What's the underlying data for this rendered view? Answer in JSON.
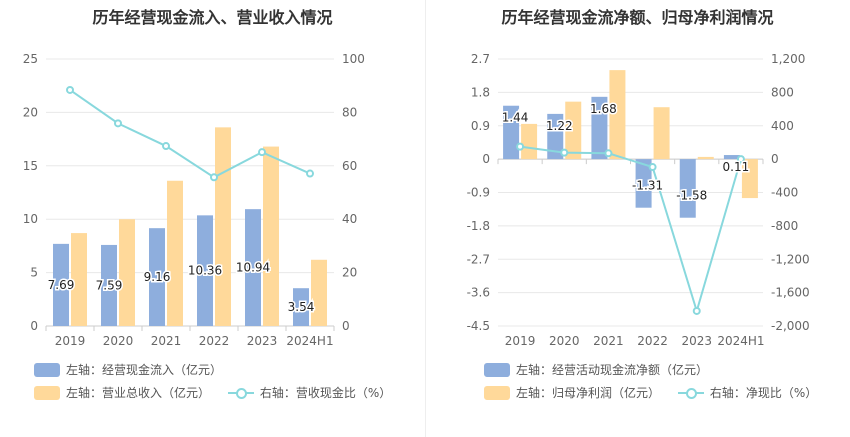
{
  "chart_data": [
    {
      "type": "bar",
      "title": "历年经营现金流入、营业收入情况",
      "categories": [
        "2019",
        "2020",
        "2021",
        "2022",
        "2023",
        "2024H1"
      ],
      "left_axis": {
        "ylim": [
          0,
          25
        ],
        "ticks": [
          "0",
          "5",
          "10",
          "15",
          "20",
          "25"
        ]
      },
      "right_axis": {
        "ylim": [
          0,
          100
        ],
        "ticks": [
          "0",
          "20",
          "40",
          "60",
          "80",
          "100"
        ]
      },
      "series": [
        {
          "name": "左轴：经营现金流入（亿元）",
          "type": "bar",
          "axis": "left",
          "color": "#8EAEDD",
          "values": [
            7.69,
            7.59,
            9.16,
            10.36,
            10.94,
            3.54
          ],
          "labels": [
            "7.69",
            "7.59",
            "9.16",
            "10.36",
            "10.94",
            "3.54"
          ]
        },
        {
          "name": "左轴：营业总收入（亿元）",
          "type": "bar",
          "axis": "left",
          "color": "#FFD99A",
          "values": [
            8.7,
            10.0,
            13.6,
            18.6,
            16.8,
            6.2
          ]
        },
        {
          "name": "右轴：营收现金比（%）",
          "type": "line",
          "axis": "right",
          "color": "#88D8DD",
          "values": [
            88.4,
            75.9,
            67.4,
            55.7,
            65.1,
            57.1
          ]
        }
      ],
      "legend": {
        "position": "bottom"
      },
      "grid": true
    },
    {
      "type": "bar",
      "title": "历年经营现金流净额、归母净利润情况",
      "categories": [
        "2019",
        "2020",
        "2021",
        "2022",
        "2023",
        "2024H1"
      ],
      "left_axis": {
        "ylim": [
          -4.5,
          2.7
        ],
        "ticks": [
          "-4.5",
          "-3.6",
          "-2.7",
          "-1.8",
          "-0.9",
          "0",
          "0.9",
          "1.8",
          "2.7"
        ]
      },
      "right_axis": {
        "ylim": [
          -2000,
          1200
        ],
        "ticks": [
          "-2,000",
          "-1,600",
          "-1,200",
          "-800",
          "-400",
          "0",
          "400",
          "800",
          "1,200"
        ]
      },
      "series": [
        {
          "name": "左轴：经营活动现金流净额（亿元）",
          "type": "bar",
          "axis": "left",
          "color": "#8EAEDD",
          "values": [
            1.44,
            1.22,
            1.68,
            -1.31,
            -1.58,
            0.11
          ],
          "labels": [
            "1.44",
            "1.22",
            "1.68",
            "-1.31",
            "-1.58",
            "0.11"
          ]
        },
        {
          "name": "左轴：归母净利润（亿元）",
          "type": "bar",
          "axis": "left",
          "color": "#FFD99A",
          "values": [
            0.95,
            1.55,
            2.4,
            1.4,
            0.06,
            -1.05
          ]
        },
        {
          "name": "右轴：净现比（%）",
          "type": "line",
          "axis": "right",
          "color": "#88D8DD",
          "values": [
            150,
            78,
            70,
            -95,
            -1820,
            0
          ]
        }
      ],
      "legend": {
        "position": "bottom"
      },
      "grid": true
    }
  ]
}
